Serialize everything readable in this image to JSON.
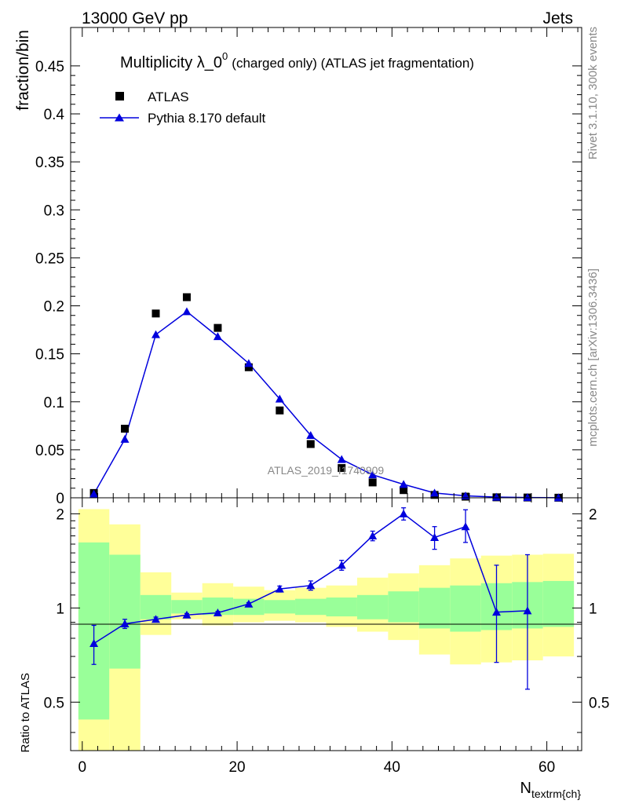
{
  "header": {
    "left": "13000 GeV pp",
    "right": "Jets"
  },
  "side_labels": {
    "rivet": "Rivet 3.1.10,  300k events",
    "mcplots": "mcplots.cern.ch [arXiv:1306.3436]"
  },
  "colors": {
    "data_marker": "#000000",
    "mc_line": "#0000dd",
    "band_inner": "#99ff99",
    "band_outer": "#ffff99"
  },
  "chart_data": [
    {
      "type": "scatter",
      "panel": "main",
      "title": {
        "main": "Multiplicity λ_0",
        "superscript": "0",
        "suffix": "(charged only) (ATLAS jet fragmentation)"
      },
      "ylabel": "fraction/bin",
      "xlabel": "",
      "xlim": [
        -1.5,
        64.5
      ],
      "ylim": [
        0,
        0.49
      ],
      "yticks": [
        0,
        0.05,
        0.1,
        0.15,
        0.2,
        0.25,
        0.3,
        0.35,
        0.4,
        0.45
      ],
      "yticklabels": [
        "0",
        "0.05",
        "0.1",
        "0.15",
        "0.2",
        "0.25",
        "0.3",
        "0.35",
        "0.4",
        "0.45"
      ],
      "legend": {
        "placement": "top-left"
      },
      "watermark": "ATLAS_2019_I1740909",
      "series": [
        {
          "name": "ATLAS",
          "marker": "square",
          "x": [
            1.5,
            5.5,
            9.5,
            13.5,
            17.5,
            21.5,
            25.5,
            29.5,
            33.5,
            37.5,
            41.5,
            45.5,
            49.5,
            53.5,
            57.5,
            61.5
          ],
          "y": [
            0.005,
            0.072,
            0.192,
            0.209,
            0.177,
            0.136,
            0.091,
            0.056,
            0.031,
            0.016,
            0.008,
            0.003,
            0.0012,
            0.0005,
            0.0003,
            0.0001
          ]
        },
        {
          "name": "Pythia 8.170 default",
          "marker": "triangle",
          "x": [
            1.5,
            5.5,
            9.5,
            13.5,
            17.5,
            21.5,
            25.5,
            29.5,
            33.5,
            37.5,
            41.5,
            45.5,
            49.5,
            53.5,
            57.5,
            61.5
          ],
          "y": [
            0.004,
            0.061,
            0.17,
            0.194,
            0.168,
            0.14,
            0.103,
            0.065,
            0.04,
            0.024,
            0.014,
            0.005,
            0.002,
            0.0007,
            0.0003,
            0.0001
          ]
        }
      ]
    },
    {
      "type": "scatter",
      "panel": "ratio",
      "ylabel": "Ratio to ATLAS",
      "xlabel": "N_textrm{ch}",
      "xlim": [
        -1.5,
        64.5
      ],
      "ylim": [
        0.35,
        2.25
      ],
      "yticks": [
        0.5,
        1,
        2
      ],
      "yticklabels": [
        "0.5",
        "1",
        "2"
      ],
      "xticks": [
        0,
        20,
        40,
        60
      ],
      "xticklabels": [
        "0",
        "20",
        "40",
        "60"
      ],
      "bins": [
        {
          "x0": -0.5,
          "x1": 3.5,
          "inner": [
            0.44,
            1.62
          ],
          "outer": [
            0.0,
            2.07
          ]
        },
        {
          "x0": 3.5,
          "x1": 7.5,
          "inner": [
            0.64,
            1.48
          ],
          "outer": [
            0.0,
            1.85
          ]
        },
        {
          "x0": 7.5,
          "x1": 11.5,
          "inner": [
            0.92,
            1.1
          ],
          "outer": [
            0.82,
            1.3
          ]
        },
        {
          "x0": 11.5,
          "x1": 15.5,
          "inner": [
            0.96,
            1.06
          ],
          "outer": [
            0.92,
            1.12
          ]
        },
        {
          "x0": 15.5,
          "x1": 19.5,
          "inner": [
            0.95,
            1.08
          ],
          "outer": [
            0.88,
            1.2
          ]
        },
        {
          "x0": 19.5,
          "x1": 23.5,
          "inner": [
            0.95,
            1.07
          ],
          "outer": [
            0.9,
            1.17
          ]
        },
        {
          "x0": 23.5,
          "x1": 27.5,
          "inner": [
            0.96,
            1.06
          ],
          "outer": [
            0.91,
            1.14
          ]
        },
        {
          "x0": 27.5,
          "x1": 31.5,
          "inner": [
            0.95,
            1.07
          ],
          "outer": [
            0.9,
            1.16
          ]
        },
        {
          "x0": 31.5,
          "x1": 35.5,
          "inner": [
            0.94,
            1.08
          ],
          "outer": [
            0.87,
            1.18
          ]
        },
        {
          "x0": 35.5,
          "x1": 39.5,
          "inner": [
            0.92,
            1.1
          ],
          "outer": [
            0.84,
            1.25
          ]
        },
        {
          "x0": 39.5,
          "x1": 43.5,
          "inner": [
            0.9,
            1.13
          ],
          "outer": [
            0.79,
            1.29
          ]
        },
        {
          "x0": 43.5,
          "x1": 47.5,
          "inner": [
            0.86,
            1.16
          ],
          "outer": [
            0.71,
            1.37
          ]
        },
        {
          "x0": 47.5,
          "x1": 51.5,
          "inner": [
            0.84,
            1.18
          ],
          "outer": [
            0.66,
            1.44
          ]
        },
        {
          "x0": 51.5,
          "x1": 55.5,
          "inner": [
            0.85,
            1.2
          ],
          "outer": [
            0.67,
            1.47
          ]
        },
        {
          "x0": 55.5,
          "x1": 59.5,
          "inner": [
            0.86,
            1.21
          ],
          "outer": [
            0.68,
            1.48
          ]
        },
        {
          "x0": 59.5,
          "x1": 63.5,
          "inner": [
            0.87,
            1.22
          ],
          "outer": [
            0.7,
            1.49
          ]
        }
      ],
      "series": [
        {
          "name": "Pythia 8.170 default",
          "marker": "triangle",
          "x": [
            1.5,
            5.5,
            9.5,
            13.5,
            17.5,
            21.5,
            25.5,
            29.5,
            33.5,
            37.5,
            41.5,
            45.5,
            49.5,
            53.5,
            57.5
          ],
          "y": [
            0.77,
            0.89,
            0.92,
            0.95,
            0.965,
            1.03,
            1.15,
            1.18,
            1.37,
            1.7,
            2.0,
            1.68,
            1.82,
            0.97,
            0.98
          ],
          "yerr_low": [
            0.11,
            0.03,
            0.015,
            0.01,
            0.01,
            0.01,
            0.025,
            0.04,
            0.05,
            0.06,
            0.09,
            0.14,
            0.2,
            0.3,
            0.43
          ],
          "yerr_high": [
            0.11,
            0.03,
            0.015,
            0.01,
            0.01,
            0.01,
            0.025,
            0.04,
            0.05,
            0.06,
            0.09,
            0.14,
            0.24,
            0.4,
            0.5
          ]
        }
      ]
    }
  ]
}
